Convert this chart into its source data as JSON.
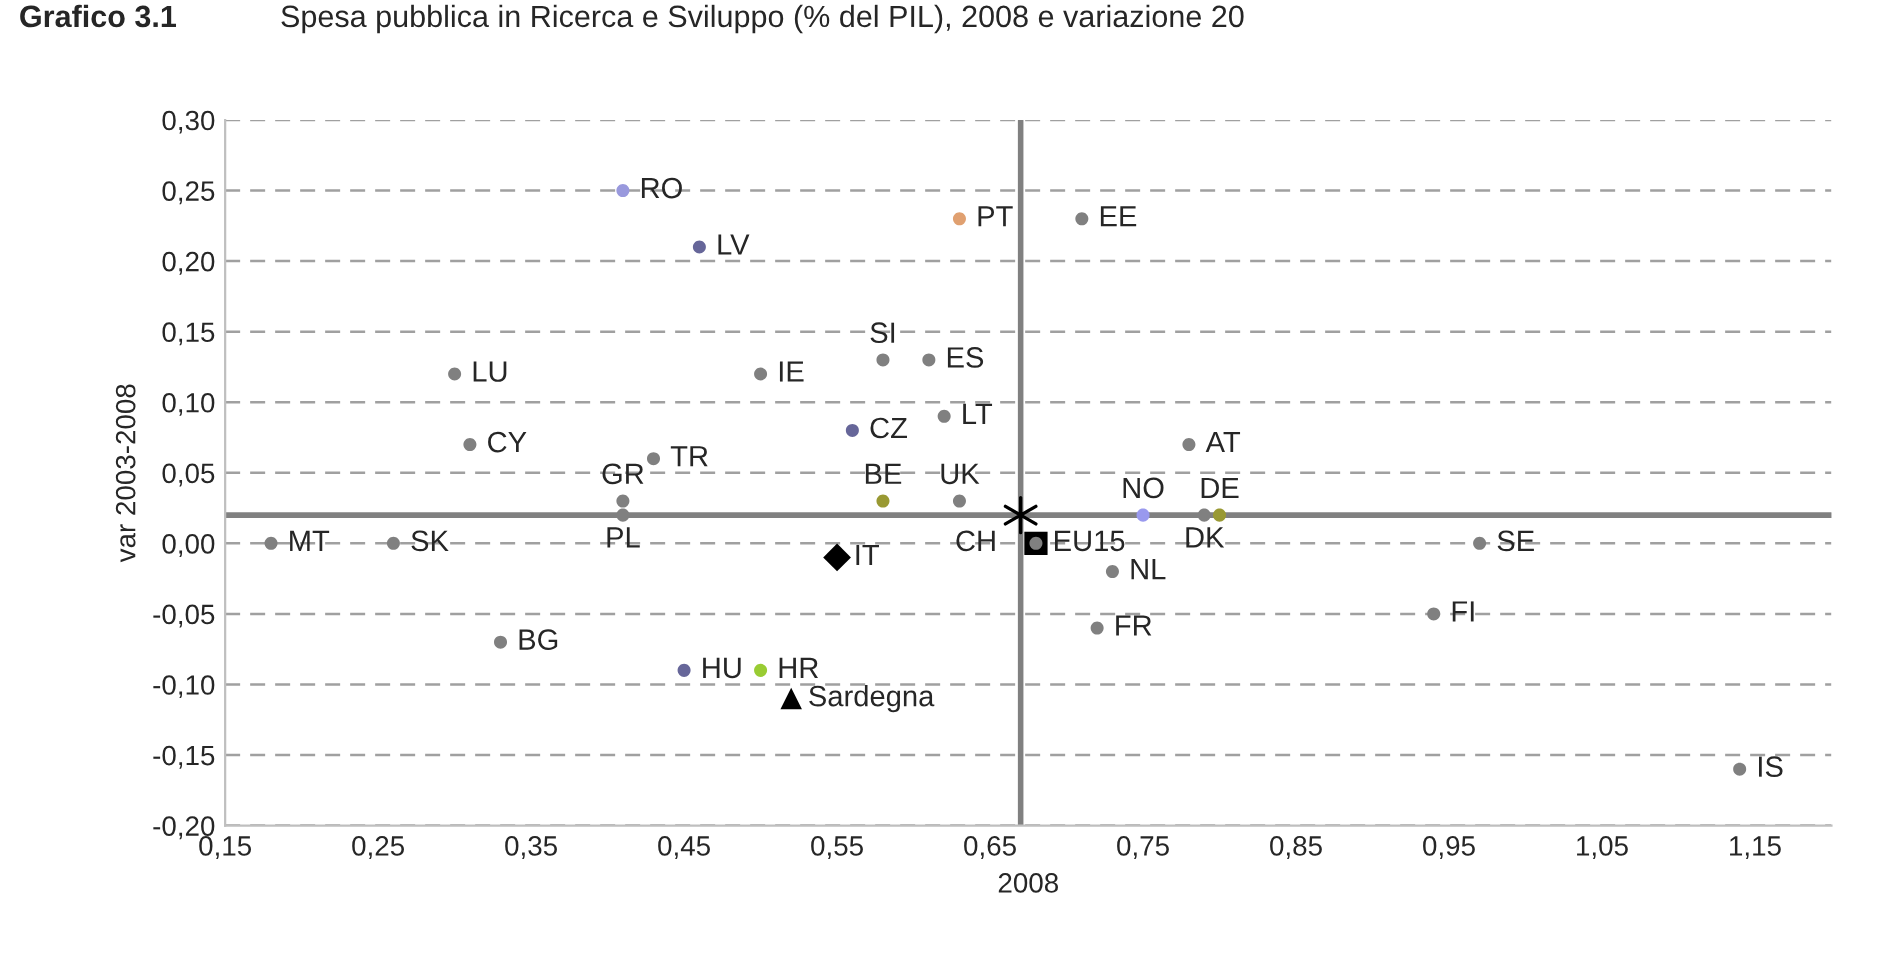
{
  "chart_data": {
    "type": "scatter",
    "title": "Grafico 3.1",
    "subtitle": "Spesa pubblica in Ricerca e Sviluppo (% del PIL), 2008 e variazione 20",
    "xlabel": "2008",
    "ylabel": "var 2003-2008",
    "series": [
      {
        "type": "scatter",
        "marker": "square",
        "color": "#000000",
        "x": [
          0.68
        ],
        "values": [
          0.0
        ]
      },
      {
        "type": "scatter",
        "marker": "circle",
        "x": [
          0.41,
          0.46,
          0.63,
          0.3,
          0.31,
          0.43,
          0.41,
          0.41,
          0.5,
          0.58,
          0.61,
          0.56,
          0.62,
          0.58,
          0.63,
          0.18,
          0.26,
          0.33,
          0.45,
          0.5,
          0.71,
          0.78,
          0.75,
          0.8,
          0.79,
          0.68,
          0.73,
          0.72,
          0.97,
          0.94,
          1.14
        ],
        "values": [
          0.25,
          0.21,
          0.23,
          0.12,
          0.07,
          0.06,
          0.03,
          0.02,
          0.12,
          0.13,
          0.13,
          0.08,
          0.09,
          0.03,
          0.03,
          0.0,
          0.0,
          -0.07,
          -0.09,
          -0.09,
          0.23,
          0.07,
          0.02,
          0.02,
          0.02,
          0.0,
          -0.02,
          -0.06,
          0.0,
          -0.05,
          -0.16
        ],
        "colors": [
          "#9999dd",
          "#666699",
          "#e0a070",
          "#808080",
          "#808080",
          "#808080",
          "#808080",
          "#808080",
          "#808080",
          "#808080",
          "#808080",
          "#666699",
          "#808080",
          "#999933",
          "#808080",
          "#808080",
          "#808080",
          "#808080",
          "#666699",
          "#99cc33",
          "#808080",
          "#808080",
          "#9999ee",
          "#999933",
          "#808080",
          "#808080",
          "#808080",
          "#808080",
          "#808080",
          "#808080",
          "#808080"
        ]
      },
      {
        "type": "scatter",
        "marker": "diamond",
        "color": "#000000",
        "x": [
          0.55
        ],
        "values": [
          -0.01
        ]
      },
      {
        "type": "scatter",
        "marker": "triangle",
        "color": "#000000",
        "x": [
          0.52
        ],
        "values": [
          -0.11
        ]
      },
      {
        "type": "scatter",
        "marker": "cross",
        "color": "#000000",
        "x": [
          0.67
        ],
        "values": [
          0.02
        ]
      }
    ],
    "annotations": [
      {
        "text": "EU15",
        "x": 0.68,
        "y": 0.0
      },
      {
        "text": "RO",
        "x": 0.41,
        "y": 0.25
      },
      {
        "text": "LV",
        "x": 0.46,
        "y": 0.21
      },
      {
        "text": "PT",
        "x": 0.63,
        "y": 0.23
      },
      {
        "text": "LU",
        "x": 0.3,
        "y": 0.12
      },
      {
        "text": "CY",
        "x": 0.31,
        "y": 0.07
      },
      {
        "text": "TR",
        "x": 0.43,
        "y": 0.06
      },
      {
        "text": "GR",
        "x": 0.41,
        "y": 0.03
      },
      {
        "text": "PL",
        "x": 0.41,
        "y": 0.02
      },
      {
        "text": "IE",
        "x": 0.5,
        "y": 0.12
      },
      {
        "text": "SI",
        "x": 0.58,
        "y": 0.13
      },
      {
        "text": "ES",
        "x": 0.61,
        "y": 0.13
      },
      {
        "text": "CZ",
        "x": 0.56,
        "y": 0.08
      },
      {
        "text": "LT",
        "x": 0.62,
        "y": 0.09
      },
      {
        "text": "BE",
        "x": 0.58,
        "y": 0.03
      },
      {
        "text": "UK",
        "x": 0.63,
        "y": 0.03
      },
      {
        "text": "MT",
        "x": 0.18,
        "y": 0.0
      },
      {
        "text": "SK",
        "x": 0.26,
        "y": 0.0
      },
      {
        "text": "BG",
        "x": 0.33,
        "y": -0.07
      },
      {
        "text": "HU",
        "x": 0.45,
        "y": -0.09
      },
      {
        "text": "HR",
        "x": 0.5,
        "y": -0.09
      },
      {
        "text": "EE",
        "x": 0.71,
        "y": 0.23
      },
      {
        "text": "AT",
        "x": 0.78,
        "y": 0.07
      },
      {
        "text": "NO",
        "x": 0.75,
        "y": 0.02
      },
      {
        "text": "DE",
        "x": 0.8,
        "y": 0.02
      },
      {
        "text": "DK",
        "x": 0.79,
        "y": 0.02
      },
      {
        "text": "CH",
        "x": 0.68,
        "y": 0.0
      },
      {
        "text": "NL",
        "x": 0.73,
        "y": -0.02
      },
      {
        "text": "FR",
        "x": 0.72,
        "y": -0.06
      },
      {
        "text": "SE",
        "x": 0.97,
        "y": 0.0
      },
      {
        "text": "FI",
        "x": 0.94,
        "y": -0.05
      },
      {
        "text": "IS",
        "x": 1.14,
        "y": -0.16
      },
      {
        "text": "IT",
        "x": 0.55,
        "y": -0.01
      },
      {
        "text": "Sardegna",
        "x": 0.52,
        "y": -0.11
      }
    ],
    "ref_lines": [
      {
        "axis": "x",
        "value": 0.67,
        "color": "#808080",
        "line_style": "solid"
      },
      {
        "axis": "y",
        "value": 0.02,
        "color": "#808080",
        "line_style": "solid"
      }
    ],
    "xlim": [
      0.15,
      1.2
    ],
    "xticks": [
      {
        "value": 0.15,
        "label": "0,15"
      },
      {
        "value": 0.25,
        "label": "0,25"
      },
      {
        "value": 0.35,
        "label": "0,35"
      },
      {
        "value": 0.45,
        "label": "0,45"
      },
      {
        "value": 0.55,
        "label": "0,55"
      },
      {
        "value": 0.65,
        "label": "0,65"
      },
      {
        "value": 0.75,
        "label": "0,75"
      },
      {
        "value": 0.85,
        "label": "0,85"
      },
      {
        "value": 0.95,
        "label": "0,95"
      },
      {
        "value": 1.05,
        "label": "1,05"
      },
      {
        "value": 1.15,
        "label": "1,15"
      }
    ],
    "ylim": [
      -0.2,
      0.3
    ],
    "yticks": [
      {
        "value": -0.2,
        "label": "-0,20"
      },
      {
        "value": -0.15,
        "label": "-0,15"
      },
      {
        "value": -0.1,
        "label": "-0,10"
      },
      {
        "value": -0.05,
        "label": "-0,05"
      },
      {
        "value": 0,
        "label": "0,00"
      },
      {
        "value": 0.05,
        "label": "0,05"
      },
      {
        "value": 0.1,
        "label": "0,10"
      },
      {
        "value": 0.15,
        "label": "0,15"
      },
      {
        "value": 0.2,
        "label": "0,20"
      },
      {
        "value": 0.25,
        "label": "0,25"
      },
      {
        "value": 0.3,
        "label": "0,30"
      }
    ],
    "grid": "y",
    "legend": false
  }
}
